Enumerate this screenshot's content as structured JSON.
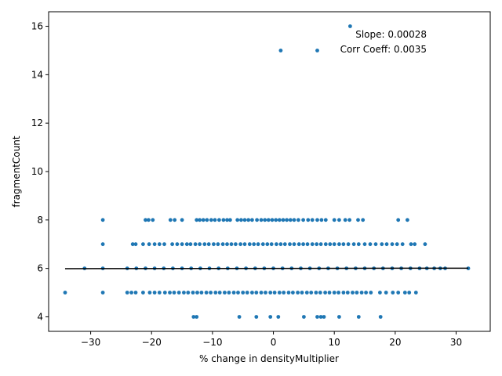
{
  "chart_data": {
    "type": "scatter",
    "xlabel": "% change in densityMultiplier",
    "ylabel": "fragmentCount",
    "xlim": [
      -36.9,
      35.6
    ],
    "ylim": [
      3.4,
      16.6
    ],
    "xticks": [
      -30,
      -20,
      -10,
      0,
      10,
      20,
      30
    ],
    "yticks": [
      4,
      6,
      8,
      10,
      12,
      14,
      16
    ],
    "point_color": "#1f77b4",
    "fit_line_color": "#000000",
    "annotations": [
      "Slope: 0.00028",
      "Corr Coeff: 0.0035"
    ],
    "fit_line": {
      "slope": 0.00028,
      "x": [
        -34.2,
        32.0
      ],
      "y": [
        5.99,
        6.01
      ]
    },
    "series": [
      {
        "points": [
          [
            12.6,
            16
          ],
          [
            1.2,
            15
          ],
          [
            7.2,
            15
          ],
          [
            -28.0,
            8
          ],
          [
            -21.0,
            8
          ],
          [
            -20.5,
            8
          ],
          [
            -19.8,
            8
          ],
          [
            -16.9,
            8
          ],
          [
            -16.2,
            8
          ],
          [
            -15.0,
            8
          ],
          [
            -12.6,
            8
          ],
          [
            -12.1,
            8
          ],
          [
            -11.5,
            8
          ],
          [
            -10.9,
            8
          ],
          [
            -10.2,
            8
          ],
          [
            -9.6,
            8
          ],
          [
            -8.9,
            8
          ],
          [
            -8.2,
            8
          ],
          [
            -7.6,
            8
          ],
          [
            -7.1,
            8
          ],
          [
            -5.9,
            8
          ],
          [
            -5.3,
            8
          ],
          [
            -4.7,
            8
          ],
          [
            -4.1,
            8
          ],
          [
            -3.5,
            8
          ],
          [
            -2.7,
            8
          ],
          [
            -2.0,
            8
          ],
          [
            -1.4,
            8
          ],
          [
            -0.8,
            8
          ],
          [
            -0.2,
            8
          ],
          [
            0.4,
            8
          ],
          [
            1.0,
            8
          ],
          [
            1.6,
            8
          ],
          [
            2.2,
            8
          ],
          [
            2.8,
            8
          ],
          [
            3.4,
            8
          ],
          [
            4.1,
            8
          ],
          [
            4.9,
            8
          ],
          [
            5.7,
            8
          ],
          [
            6.4,
            8
          ],
          [
            7.2,
            8
          ],
          [
            7.9,
            8
          ],
          [
            8.6,
            8
          ],
          [
            10.0,
            8
          ],
          [
            10.8,
            8
          ],
          [
            11.8,
            8
          ],
          [
            12.5,
            8
          ],
          [
            13.9,
            8
          ],
          [
            14.7,
            8
          ],
          [
            20.5,
            8
          ],
          [
            22.0,
            8
          ],
          [
            -28.0,
            7
          ],
          [
            -23.1,
            7
          ],
          [
            -22.6,
            7
          ],
          [
            -21.4,
            7
          ],
          [
            -20.4,
            7
          ],
          [
            -19.5,
            7
          ],
          [
            -18.7,
            7
          ],
          [
            -17.9,
            7
          ],
          [
            -16.6,
            7
          ],
          [
            -15.8,
            7
          ],
          [
            -15.0,
            7
          ],
          [
            -14.2,
            7
          ],
          [
            -13.6,
            7
          ],
          [
            -12.8,
            7
          ],
          [
            -12.1,
            7
          ],
          [
            -11.3,
            7
          ],
          [
            -10.6,
            7
          ],
          [
            -9.8,
            7
          ],
          [
            -9.1,
            7
          ],
          [
            -8.3,
            7
          ],
          [
            -7.6,
            7
          ],
          [
            -6.9,
            7
          ],
          [
            -6.2,
            7
          ],
          [
            -5.4,
            7
          ],
          [
            -4.7,
            7
          ],
          [
            -3.9,
            7
          ],
          [
            -3.2,
            7
          ],
          [
            -2.5,
            7
          ],
          [
            -1.7,
            7
          ],
          [
            -1.0,
            7
          ],
          [
            -0.3,
            7
          ],
          [
            0.5,
            7
          ],
          [
            1.2,
            7
          ],
          [
            1.9,
            7
          ],
          [
            2.7,
            7
          ],
          [
            3.4,
            7
          ],
          [
            4.2,
            7
          ],
          [
            4.9,
            7
          ],
          [
            5.6,
            7
          ],
          [
            6.4,
            7
          ],
          [
            7.1,
            7
          ],
          [
            7.8,
            7
          ],
          [
            8.6,
            7
          ],
          [
            9.3,
            7
          ],
          [
            10.0,
            7
          ],
          [
            10.8,
            7
          ],
          [
            11.5,
            7
          ],
          [
            12.3,
            7
          ],
          [
            13.2,
            7
          ],
          [
            14.0,
            7
          ],
          [
            15.0,
            7
          ],
          [
            15.9,
            7
          ],
          [
            16.8,
            7
          ],
          [
            17.8,
            7
          ],
          [
            18.6,
            7
          ],
          [
            19.5,
            7
          ],
          [
            20.3,
            7
          ],
          [
            21.2,
            7
          ],
          [
            22.6,
            7
          ],
          [
            23.2,
            7
          ],
          [
            24.9,
            7
          ],
          [
            -31.0,
            6
          ],
          [
            -28.0,
            6
          ],
          [
            -24.0,
            6
          ],
          [
            -22.5,
            6
          ],
          [
            -21.0,
            6
          ],
          [
            -19.5,
            6
          ],
          [
            -18.0,
            6
          ],
          [
            -16.5,
            6
          ],
          [
            -15.0,
            6
          ],
          [
            -13.5,
            6
          ],
          [
            -12.0,
            6
          ],
          [
            -10.5,
            6
          ],
          [
            -9.0,
            6
          ],
          [
            -7.5,
            6
          ],
          [
            -6.0,
            6
          ],
          [
            -4.5,
            6
          ],
          [
            -3.0,
            6
          ],
          [
            -1.5,
            6
          ],
          [
            0.0,
            6
          ],
          [
            1.5,
            6
          ],
          [
            3.0,
            6
          ],
          [
            4.5,
            6
          ],
          [
            6.0,
            6
          ],
          [
            7.5,
            6
          ],
          [
            9.0,
            6
          ],
          [
            10.5,
            6
          ],
          [
            12.0,
            6
          ],
          [
            13.5,
            6
          ],
          [
            15.0,
            6
          ],
          [
            16.5,
            6
          ],
          [
            18.0,
            6
          ],
          [
            19.5,
            6
          ],
          [
            21.0,
            6
          ],
          [
            22.5,
            6
          ],
          [
            24.0,
            6
          ],
          [
            25.2,
            6
          ],
          [
            26.4,
            6
          ],
          [
            27.4,
            6
          ],
          [
            28.2,
            6
          ],
          [
            32.0,
            6
          ],
          [
            -34.2,
            5
          ],
          [
            -28.0,
            5
          ],
          [
            -24.0,
            5
          ],
          [
            -23.3,
            5
          ],
          [
            -22.6,
            5
          ],
          [
            -21.4,
            5
          ],
          [
            -20.3,
            5
          ],
          [
            -19.5,
            5
          ],
          [
            -18.7,
            5
          ],
          [
            -17.8,
            5
          ],
          [
            -17.0,
            5
          ],
          [
            -16.3,
            5
          ],
          [
            -15.5,
            5
          ],
          [
            -14.7,
            5
          ],
          [
            -14.0,
            5
          ],
          [
            -13.2,
            5
          ],
          [
            -12.5,
            5
          ],
          [
            -11.8,
            5
          ],
          [
            -11.0,
            5
          ],
          [
            -10.3,
            5
          ],
          [
            -9.5,
            5
          ],
          [
            -8.8,
            5
          ],
          [
            -8.0,
            5
          ],
          [
            -7.3,
            5
          ],
          [
            -6.5,
            5
          ],
          [
            -5.8,
            5
          ],
          [
            -5.0,
            5
          ],
          [
            -4.3,
            5
          ],
          [
            -3.5,
            5
          ],
          [
            -2.8,
            5
          ],
          [
            -2.0,
            5
          ],
          [
            -1.3,
            5
          ],
          [
            -0.5,
            5
          ],
          [
            0.2,
            5
          ],
          [
            1.0,
            5
          ],
          [
            1.7,
            5
          ],
          [
            2.5,
            5
          ],
          [
            3.2,
            5
          ],
          [
            4.0,
            5
          ],
          [
            4.7,
            5
          ],
          [
            5.5,
            5
          ],
          [
            6.2,
            5
          ],
          [
            7.0,
            5
          ],
          [
            7.7,
            5
          ],
          [
            8.5,
            5
          ],
          [
            9.2,
            5
          ],
          [
            10.0,
            5
          ],
          [
            10.7,
            5
          ],
          [
            11.5,
            5
          ],
          [
            12.2,
            5
          ],
          [
            13.0,
            5
          ],
          [
            13.7,
            5
          ],
          [
            14.5,
            5
          ],
          [
            15.2,
            5
          ],
          [
            16.0,
            5
          ],
          [
            17.5,
            5
          ],
          [
            18.5,
            5
          ],
          [
            19.6,
            5
          ],
          [
            20.5,
            5
          ],
          [
            21.6,
            5
          ],
          [
            22.3,
            5
          ],
          [
            23.4,
            5
          ],
          [
            -13.1,
            4
          ],
          [
            -12.6,
            4
          ],
          [
            -5.6,
            4
          ],
          [
            -2.8,
            4
          ],
          [
            -0.5,
            4
          ],
          [
            0.8,
            4
          ],
          [
            5.0,
            4
          ],
          [
            7.2,
            4
          ],
          [
            7.8,
            4
          ],
          [
            8.3,
            4
          ],
          [
            10.8,
            4
          ],
          [
            14.0,
            4
          ],
          [
            17.6,
            4
          ]
        ]
      }
    ]
  }
}
